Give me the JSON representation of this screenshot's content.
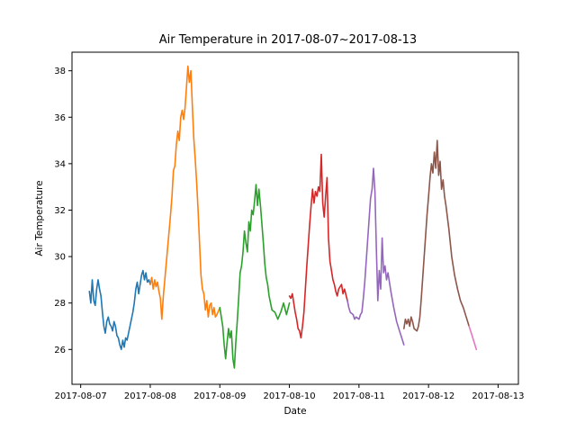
{
  "chart_data": {
    "type": "line",
    "title": "Air Temperature in 2017-08-07~2017-08-13",
    "xlabel": "Date",
    "ylabel": "Air Temperature",
    "xlim": [
      "2017-08-06 21:00",
      "2017-08-13 07:00"
    ],
    "ylim": [
      24.5,
      38.8
    ],
    "xticks": [
      "2017-08-07",
      "2017-08-08",
      "2017-08-09",
      "2017-08-10",
      "2017-08-11",
      "2017-08-12",
      "2017-08-13"
    ],
    "yticks": [
      26,
      28,
      30,
      32,
      34,
      36,
      38
    ],
    "grid": false,
    "legend": "none",
    "series": [
      {
        "color": "#1f77b4",
        "points": [
          [
            "2017-08-07 03:00",
            28.5
          ],
          [
            "2017-08-07 03:30",
            28.0
          ],
          [
            "2017-08-07 04:00",
            29.0
          ],
          [
            "2017-08-07 04:30",
            28.1
          ],
          [
            "2017-08-07 05:00",
            27.9
          ],
          [
            "2017-08-07 05:30",
            28.6
          ],
          [
            "2017-08-07 06:00",
            29.0
          ],
          [
            "2017-08-07 06:30",
            28.6
          ],
          [
            "2017-08-07 07:00",
            28.3
          ],
          [
            "2017-08-07 07:30",
            27.6
          ],
          [
            "2017-08-07 08:00",
            27.0
          ],
          [
            "2017-08-07 08:30",
            26.7
          ],
          [
            "2017-08-07 09:00",
            27.2
          ],
          [
            "2017-08-07 09:30",
            27.4
          ],
          [
            "2017-08-07 10:00",
            27.1
          ],
          [
            "2017-08-07 10:30",
            27.0
          ],
          [
            "2017-08-07 11:00",
            26.8
          ],
          [
            "2017-08-07 11:30",
            27.2
          ],
          [
            "2017-08-07 12:00",
            27.0
          ],
          [
            "2017-08-07 12:30",
            26.6
          ],
          [
            "2017-08-07 13:00",
            26.5
          ],
          [
            "2017-08-07 13:30",
            26.2
          ],
          [
            "2017-08-07 14:00",
            26.0
          ],
          [
            "2017-08-07 14:30",
            26.4
          ],
          [
            "2017-08-07 15:00",
            26.1
          ],
          [
            "2017-08-07 15:30",
            26.5
          ],
          [
            "2017-08-07 16:00",
            26.4
          ],
          [
            "2017-08-07 17:00",
            27.0
          ],
          [
            "2017-08-07 18:00",
            27.6
          ],
          [
            "2017-08-07 18:30",
            28.0
          ],
          [
            "2017-08-07 19:00",
            28.6
          ],
          [
            "2017-08-07 19:30",
            28.9
          ],
          [
            "2017-08-07 20:00",
            28.4
          ],
          [
            "2017-08-07 21:00",
            29.2
          ],
          [
            "2017-08-07 21:30",
            29.4
          ],
          [
            "2017-08-07 22:00",
            29.0
          ],
          [
            "2017-08-07 22:30",
            29.3
          ],
          [
            "2017-08-07 23:00",
            28.9
          ],
          [
            "2017-08-07 23:30",
            29.0
          ],
          [
            "2017-08-08 00:00",
            28.8
          ]
        ]
      },
      {
        "color": "#ff7f0e",
        "points": [
          [
            "2017-08-08 00:00",
            28.8
          ],
          [
            "2017-08-08 00:30",
            29.1
          ],
          [
            "2017-08-08 01:00",
            28.6
          ],
          [
            "2017-08-08 01:30",
            29.0
          ],
          [
            "2017-08-08 02:00",
            28.7
          ],
          [
            "2017-08-08 02:30",
            28.9
          ],
          [
            "2017-08-08 03:00",
            28.5
          ],
          [
            "2017-08-08 03:30",
            28.2
          ],
          [
            "2017-08-08 04:00",
            27.3
          ],
          [
            "2017-08-08 04:30",
            28.3
          ],
          [
            "2017-08-08 05:00",
            29.0
          ],
          [
            "2017-08-08 06:00",
            30.4
          ],
          [
            "2017-08-08 07:00",
            31.8
          ],
          [
            "2017-08-08 07:30",
            32.6
          ],
          [
            "2017-08-08 08:00",
            33.7
          ],
          [
            "2017-08-08 08:30",
            33.9
          ],
          [
            "2017-08-08 09:00",
            34.8
          ],
          [
            "2017-08-08 09:30",
            35.4
          ],
          [
            "2017-08-08 10:00",
            35.0
          ],
          [
            "2017-08-08 10:30",
            36.0
          ],
          [
            "2017-08-08 11:00",
            36.3
          ],
          [
            "2017-08-08 11:30",
            35.9
          ],
          [
            "2017-08-08 12:00",
            36.4
          ],
          [
            "2017-08-08 12:30",
            37.3
          ],
          [
            "2017-08-08 13:00",
            38.2
          ],
          [
            "2017-08-08 13:30",
            37.5
          ],
          [
            "2017-08-08 14:00",
            38.0
          ],
          [
            "2017-08-08 14:30",
            36.5
          ],
          [
            "2017-08-08 15:00",
            35.1
          ],
          [
            "2017-08-08 15:30",
            34.2
          ],
          [
            "2017-08-08 16:00",
            33.2
          ],
          [
            "2017-08-08 16:30",
            32.0
          ],
          [
            "2017-08-08 17:00",
            30.6
          ],
          [
            "2017-08-08 17:30",
            29.2
          ],
          [
            "2017-08-08 18:00",
            28.6
          ],
          [
            "2017-08-08 18:30",
            28.4
          ],
          [
            "2017-08-08 19:00",
            27.7
          ],
          [
            "2017-08-08 19:30",
            28.1
          ],
          [
            "2017-08-08 20:00",
            27.4
          ],
          [
            "2017-08-08 20:30",
            27.9
          ],
          [
            "2017-08-08 21:00",
            28.0
          ],
          [
            "2017-08-08 21:30",
            27.5
          ],
          [
            "2017-08-08 22:00",
            27.8
          ],
          [
            "2017-08-08 22:30",
            27.4
          ],
          [
            "2017-08-08 23:00",
            27.5
          ],
          [
            "2017-08-09 00:00",
            27.8
          ]
        ]
      },
      {
        "color": "#2ca02c",
        "points": [
          [
            "2017-08-09 00:00",
            27.8
          ],
          [
            "2017-08-09 00:30",
            27.4
          ],
          [
            "2017-08-09 01:00",
            27.0
          ],
          [
            "2017-08-09 01:30",
            26.2
          ],
          [
            "2017-08-09 02:00",
            25.6
          ],
          [
            "2017-08-09 02:30",
            26.3
          ],
          [
            "2017-08-09 03:00",
            26.9
          ],
          [
            "2017-08-09 03:30",
            26.5
          ],
          [
            "2017-08-09 04:00",
            26.8
          ],
          [
            "2017-08-09 04:30",
            25.6
          ],
          [
            "2017-08-09 05:00",
            25.2
          ],
          [
            "2017-08-09 05:30",
            26.3
          ],
          [
            "2017-08-09 06:00",
            27.2
          ],
          [
            "2017-08-09 06:30",
            28.2
          ],
          [
            "2017-08-09 07:00",
            29.3
          ],
          [
            "2017-08-09 07:30",
            29.6
          ],
          [
            "2017-08-09 08:00",
            30.2
          ],
          [
            "2017-08-09 08:30",
            31.1
          ],
          [
            "2017-08-09 09:00",
            30.6
          ],
          [
            "2017-08-09 09:30",
            30.2
          ],
          [
            "2017-08-09 10:00",
            31.5
          ],
          [
            "2017-08-09 10:30",
            31.1
          ],
          [
            "2017-08-09 11:00",
            32.0
          ],
          [
            "2017-08-09 11:30",
            31.8
          ],
          [
            "2017-08-09 12:00",
            32.4
          ],
          [
            "2017-08-09 12:30",
            33.1
          ],
          [
            "2017-08-09 13:00",
            32.2
          ],
          [
            "2017-08-09 13:30",
            32.9
          ],
          [
            "2017-08-09 14:00",
            32.2
          ],
          [
            "2017-08-09 14:30",
            31.4
          ],
          [
            "2017-08-09 15:00",
            30.6
          ],
          [
            "2017-08-09 15:30",
            29.7
          ],
          [
            "2017-08-09 16:00",
            29.1
          ],
          [
            "2017-08-09 16:30",
            28.8
          ],
          [
            "2017-08-09 17:00",
            28.3
          ],
          [
            "2017-08-09 17:30",
            28.0
          ],
          [
            "2017-08-09 18:00",
            27.7
          ],
          [
            "2017-08-09 19:00",
            27.6
          ],
          [
            "2017-08-09 20:00",
            27.3
          ],
          [
            "2017-08-09 21:00",
            27.6
          ],
          [
            "2017-08-09 22:00",
            28.0
          ],
          [
            "2017-08-09 23:00",
            27.5
          ],
          [
            "2017-08-10 00:00",
            28.0
          ]
        ]
      },
      {
        "color": "#d62728",
        "points": [
          [
            "2017-08-10 00:00",
            28.3
          ],
          [
            "2017-08-10 00:30",
            28.2
          ],
          [
            "2017-08-10 01:00",
            28.4
          ],
          [
            "2017-08-10 01:30",
            28.0
          ],
          [
            "2017-08-10 02:00",
            27.6
          ],
          [
            "2017-08-10 02:30",
            27.3
          ],
          [
            "2017-08-10 03:00",
            26.9
          ],
          [
            "2017-08-10 03:30",
            26.8
          ],
          [
            "2017-08-10 04:00",
            26.5
          ],
          [
            "2017-08-10 04:30",
            27.0
          ],
          [
            "2017-08-10 05:00",
            27.6
          ],
          [
            "2017-08-10 05:30",
            28.6
          ],
          [
            "2017-08-10 06:00",
            29.6
          ],
          [
            "2017-08-10 06:30",
            30.5
          ],
          [
            "2017-08-10 07:00",
            31.4
          ],
          [
            "2017-08-10 07:30",
            32.2
          ],
          [
            "2017-08-10 08:00",
            32.9
          ],
          [
            "2017-08-10 08:30",
            32.3
          ],
          [
            "2017-08-10 09:00",
            32.8
          ],
          [
            "2017-08-10 09:30",
            32.6
          ],
          [
            "2017-08-10 10:00",
            33.0
          ],
          [
            "2017-08-10 10:30",
            32.8
          ],
          [
            "2017-08-10 11:00",
            34.4
          ],
          [
            "2017-08-10 11:30",
            32.3
          ],
          [
            "2017-08-10 12:00",
            31.7
          ],
          [
            "2017-08-10 12:30",
            32.6
          ],
          [
            "2017-08-10 13:00",
            33.4
          ],
          [
            "2017-08-10 13:30",
            30.8
          ],
          [
            "2017-08-10 14:00",
            29.8
          ],
          [
            "2017-08-10 14:30",
            29.4
          ],
          [
            "2017-08-10 15:00",
            29.0
          ],
          [
            "2017-08-10 15:30",
            28.8
          ],
          [
            "2017-08-10 16:00",
            28.5
          ],
          [
            "2017-08-10 16:30",
            28.3
          ],
          [
            "2017-08-10 17:00",
            28.6
          ],
          [
            "2017-08-10 18:00",
            28.8
          ],
          [
            "2017-08-10 18:30",
            28.4
          ],
          [
            "2017-08-10 19:00",
            28.6
          ],
          [
            "2017-08-10 20:00",
            28.1
          ]
        ]
      },
      {
        "color": "#9467bd",
        "points": [
          [
            "2017-08-10 20:00",
            28.1
          ],
          [
            "2017-08-10 20:30",
            27.8
          ],
          [
            "2017-08-10 21:00",
            27.6
          ],
          [
            "2017-08-10 22:00",
            27.5
          ],
          [
            "2017-08-10 22:30",
            27.3
          ],
          [
            "2017-08-10 23:00",
            27.4
          ],
          [
            "2017-08-11 00:00",
            27.3
          ],
          [
            "2017-08-11 00:30",
            27.5
          ],
          [
            "2017-08-11 01:00",
            27.6
          ],
          [
            "2017-08-11 01:30",
            28.2
          ],
          [
            "2017-08-11 02:00",
            28.9
          ],
          [
            "2017-08-11 02:30",
            29.8
          ],
          [
            "2017-08-11 03:00",
            30.7
          ],
          [
            "2017-08-11 03:30",
            31.6
          ],
          [
            "2017-08-11 04:00",
            32.5
          ],
          [
            "2017-08-11 04:30",
            32.9
          ],
          [
            "2017-08-11 05:00",
            33.8
          ],
          [
            "2017-08-11 05:30",
            32.8
          ],
          [
            "2017-08-11 06:00",
            30.3
          ],
          [
            "2017-08-11 06:30",
            28.1
          ],
          [
            "2017-08-11 07:00",
            29.4
          ],
          [
            "2017-08-11 07:30",
            28.6
          ],
          [
            "2017-08-11 08:00",
            30.8
          ],
          [
            "2017-08-11 08:30",
            29.3
          ],
          [
            "2017-08-11 09:00",
            29.6
          ],
          [
            "2017-08-11 09:30",
            29.0
          ],
          [
            "2017-08-11 10:00",
            29.3
          ],
          [
            "2017-08-11 11:00",
            28.5
          ],
          [
            "2017-08-11 12:00",
            27.8
          ],
          [
            "2017-08-11 13:00",
            27.2
          ],
          [
            "2017-08-11 14:00",
            26.8
          ],
          [
            "2017-08-11 15:00",
            26.4
          ],
          [
            "2017-08-11 15:30",
            26.2
          ]
        ]
      },
      {
        "color": "#8c564b",
        "points": [
          [
            "2017-08-11 15:30",
            26.9
          ],
          [
            "2017-08-11 16:00",
            27.3
          ],
          [
            "2017-08-11 16:30",
            27.1
          ],
          [
            "2017-08-11 17:00",
            27.3
          ],
          [
            "2017-08-11 17:30",
            27.0
          ],
          [
            "2017-08-11 18:00",
            27.4
          ],
          [
            "2017-08-11 18:30",
            27.2
          ],
          [
            "2017-08-11 19:00",
            26.9
          ],
          [
            "2017-08-11 20:00",
            26.8
          ],
          [
            "2017-08-11 20:30",
            27.0
          ],
          [
            "2017-08-11 21:00",
            27.4
          ],
          [
            "2017-08-11 21:30",
            28.2
          ],
          [
            "2017-08-11 22:00",
            29.1
          ],
          [
            "2017-08-11 22:30",
            30.0
          ],
          [
            "2017-08-11 23:00",
            30.9
          ],
          [
            "2017-08-11 23:30",
            31.8
          ],
          [
            "2017-08-12 00:00",
            32.6
          ],
          [
            "2017-08-12 00:30",
            33.4
          ],
          [
            "2017-08-12 01:00",
            34.0
          ],
          [
            "2017-08-12 01:30",
            33.6
          ],
          [
            "2017-08-12 02:00",
            34.5
          ],
          [
            "2017-08-12 02:30",
            33.8
          ],
          [
            "2017-08-12 03:00",
            35.0
          ],
          [
            "2017-08-12 03:30",
            33.5
          ],
          [
            "2017-08-12 04:00",
            34.1
          ],
          [
            "2017-08-12 04:30",
            32.9
          ],
          [
            "2017-08-12 05:00",
            33.3
          ],
          [
            "2017-08-12 05:30",
            32.6
          ],
          [
            "2017-08-12 06:00",
            32.2
          ],
          [
            "2017-08-12 07:00",
            31.2
          ],
          [
            "2017-08-12 08:00",
            30.0
          ],
          [
            "2017-08-12 09:00",
            29.2
          ],
          [
            "2017-08-12 10:00",
            28.6
          ],
          [
            "2017-08-12 11:00",
            28.1
          ],
          [
            "2017-08-12 12:00",
            27.8
          ],
          [
            "2017-08-12 13:00",
            27.4
          ],
          [
            "2017-08-12 14:00",
            27.0
          ]
        ]
      },
      {
        "color": "#e377c2",
        "points": [
          [
            "2017-08-12 14:00",
            27.0
          ],
          [
            "2017-08-12 14:30",
            26.8
          ],
          [
            "2017-08-12 15:00",
            26.6
          ],
          [
            "2017-08-12 15:30",
            26.4
          ],
          [
            "2017-08-12 16:00",
            26.2
          ],
          [
            "2017-08-12 16:30",
            26.0
          ]
        ]
      }
    ]
  }
}
